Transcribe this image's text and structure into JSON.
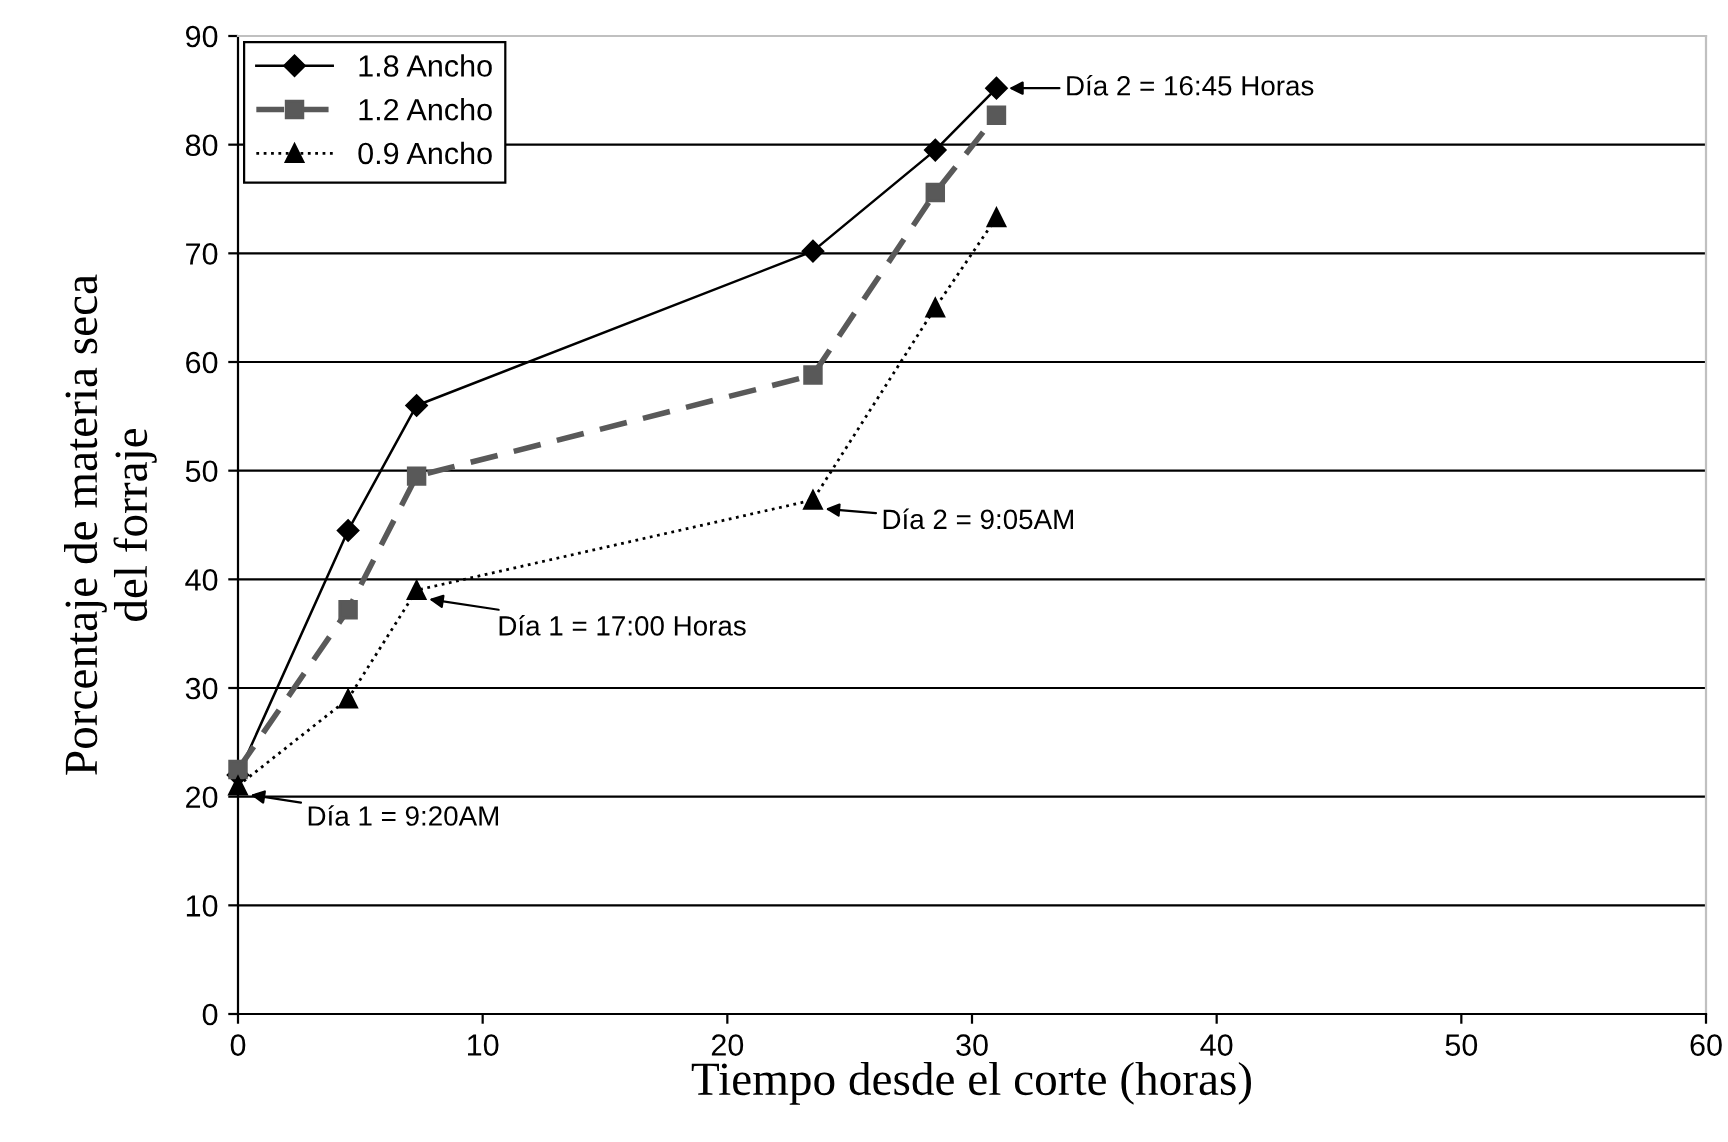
{
  "chart_data": {
    "type": "line",
    "xlabel": "Tiempo desde el corte (horas)",
    "ylabel": "Porcentaje de materia seca\ndel forraje",
    "x": [
      0,
      4.5,
      7.3,
      23.5,
      28.5,
      31
    ],
    "series": [
      {
        "name": "1.8 Ancho",
        "color": "#000000",
        "values": [
          22,
          44.5,
          56,
          70.2,
          79.5,
          85.2
        ],
        "marker": "diamond",
        "line_style": "solid"
      },
      {
        "name": "1.2 Ancho",
        "color": "#595959",
        "values": [
          22.5,
          37.2,
          49.5,
          58.8,
          75.6,
          82.7
        ],
        "marker": "square",
        "line_style": "dashed"
      },
      {
        "name": "0.9 Ancho",
        "color": "#000000",
        "values": [
          21,
          29,
          39,
          47.3,
          65,
          73.3
        ],
        "marker": "triangle",
        "line_style": "dotted"
      }
    ],
    "xlim": [
      0,
      60
    ],
    "xticks": [
      0,
      10,
      20,
      30,
      40,
      50,
      60
    ],
    "ylim": [
      0,
      90
    ],
    "yticks": [
      0,
      10,
      20,
      30,
      40,
      50,
      60,
      70,
      80,
      90
    ],
    "grid": "y",
    "legend": "top left",
    "annotations": [
      {
        "text": "Día 1 = 9:20AM",
        "x": 0,
        "y": 21
      },
      {
        "text": "Día 1 = 17:00 Horas",
        "x": 7.3,
        "y": 39
      },
      {
        "text": "Día 2 = 9:05AM",
        "x": 23.5,
        "y": 47.3
      },
      {
        "text": "Día 2 = 16:45 Horas",
        "x": 31,
        "y": 85.2
      }
    ]
  }
}
